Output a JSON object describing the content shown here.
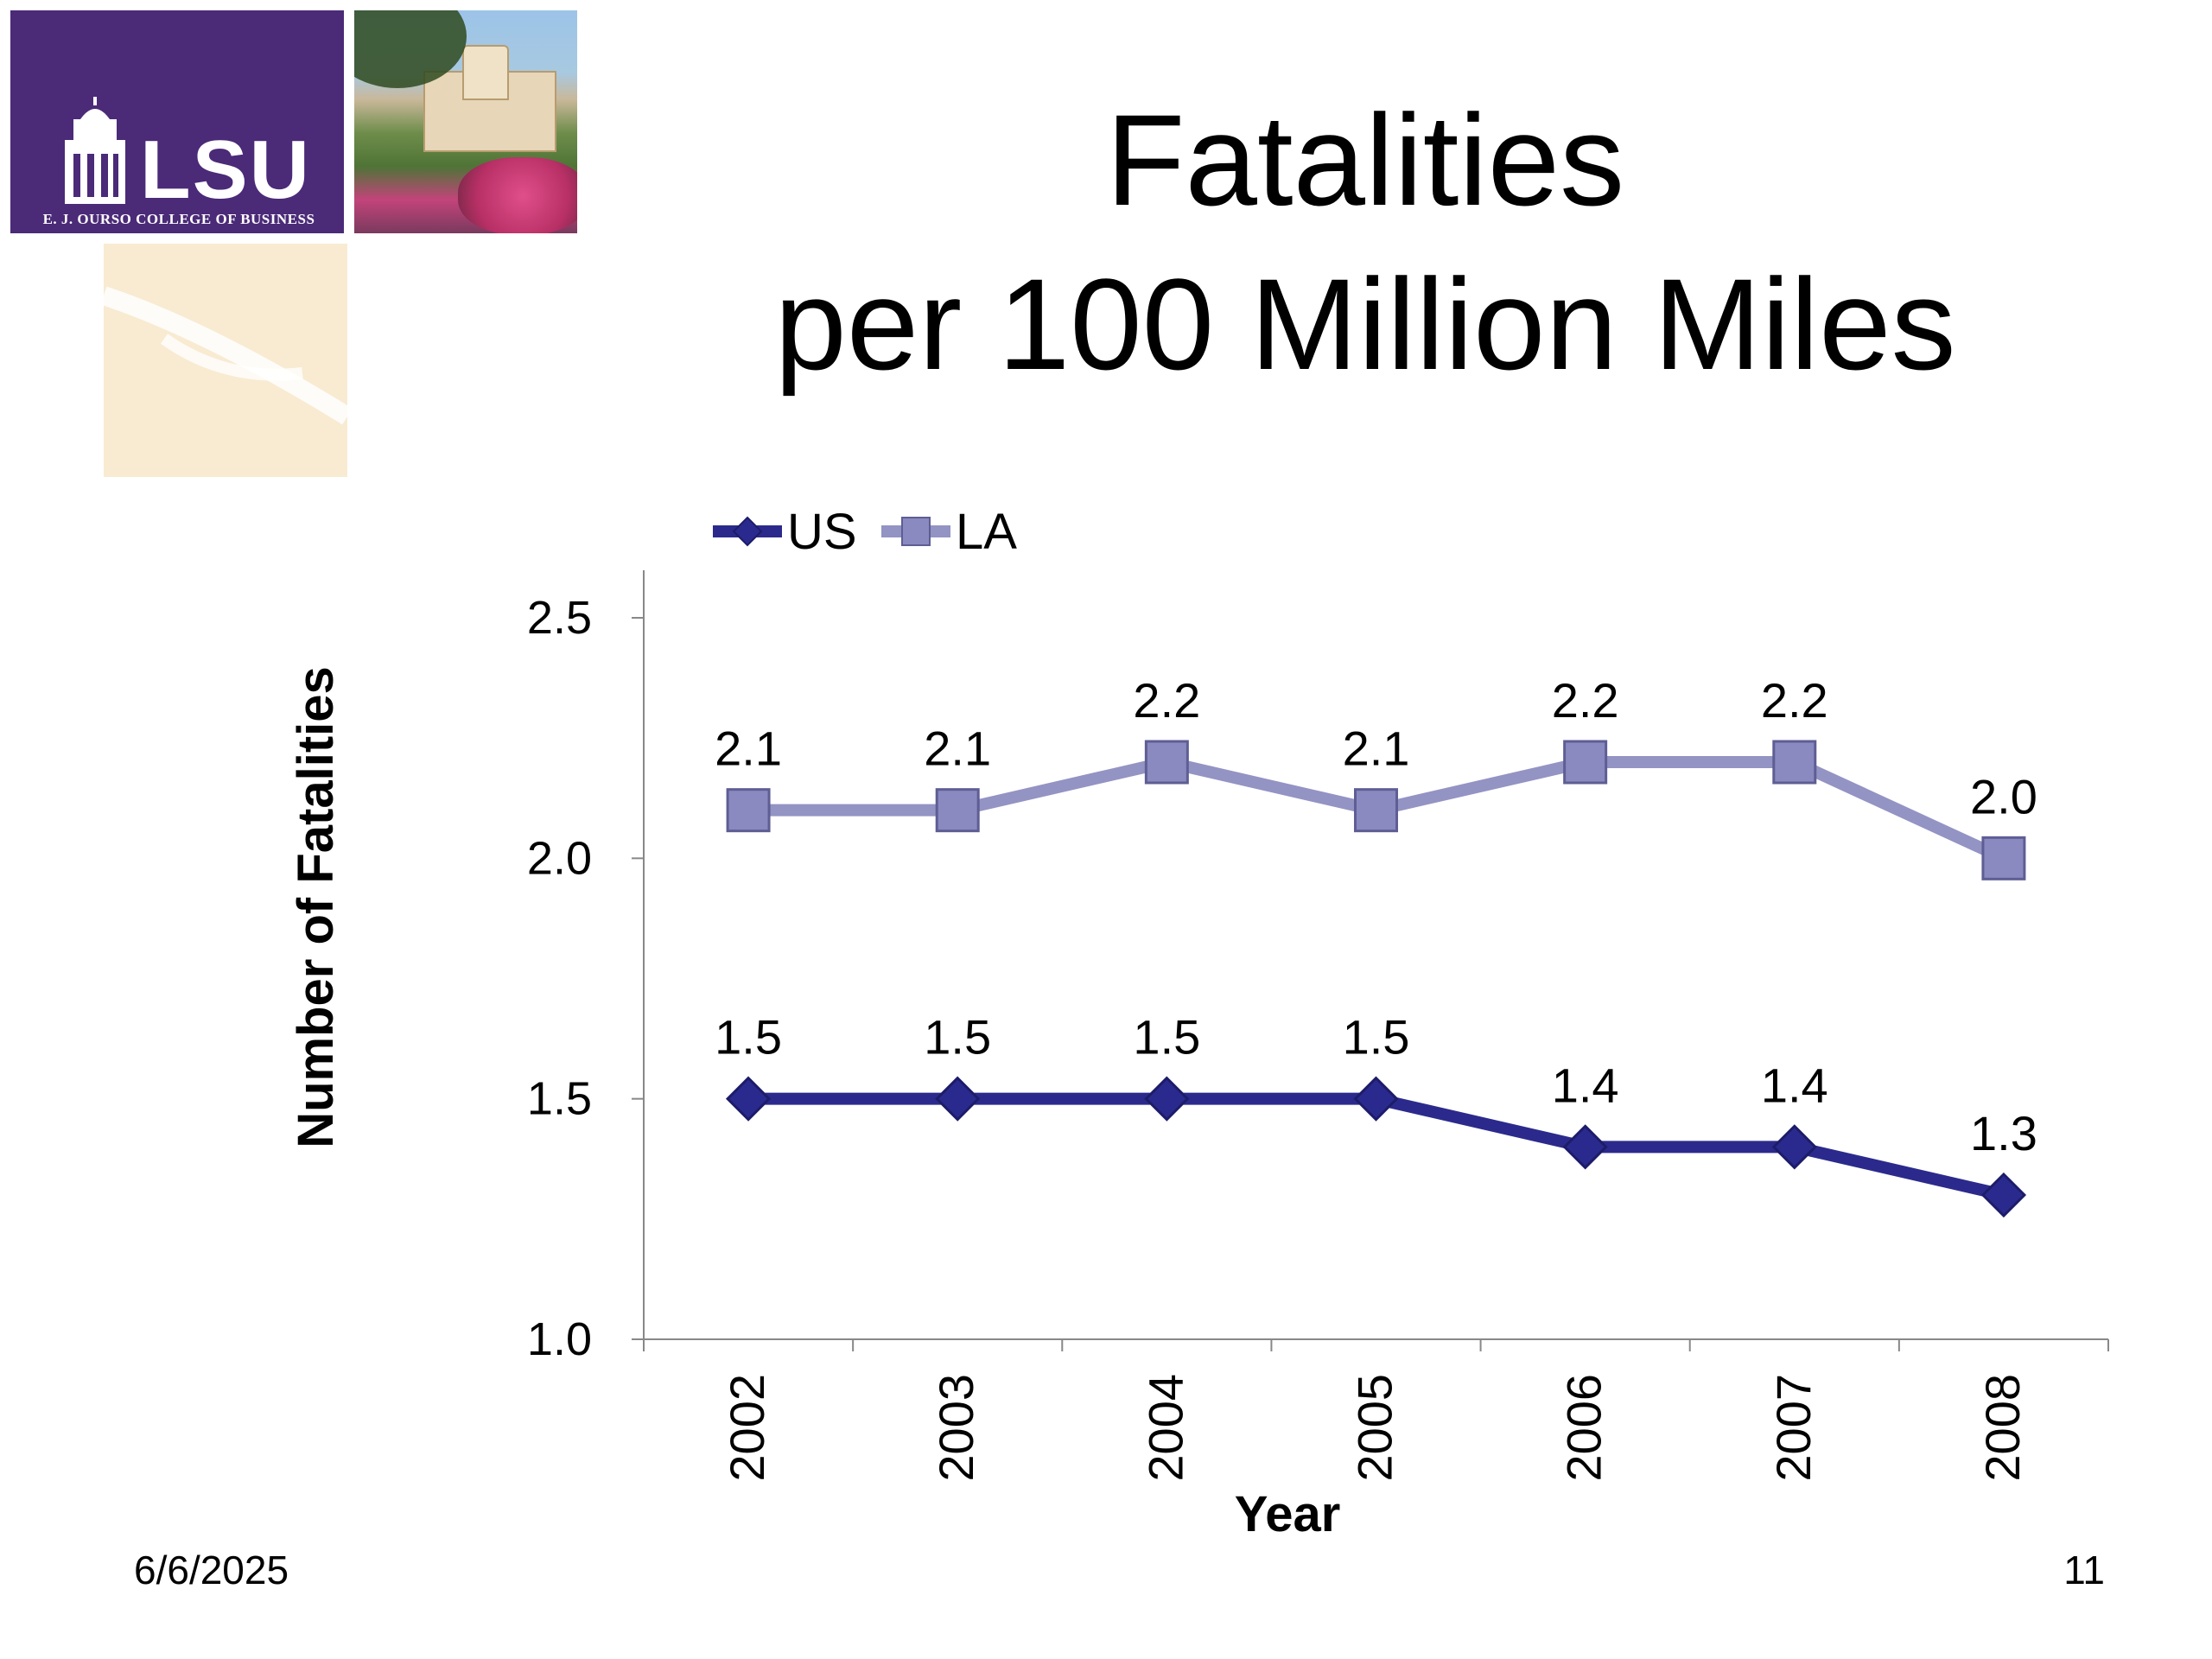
{
  "slide": {
    "title_line1": "Fatalities",
    "title_line2": "per 100 Million Miles",
    "date": "6/6/2025",
    "page_number": "11"
  },
  "logo": {
    "wordmark": "LSU",
    "subtitle": "E. J. OURSO COLLEGE OF BUSINESS",
    "brand_color": "#4b2a78"
  },
  "chart_data": {
    "type": "line",
    "title": "",
    "xlabel": "Year",
    "ylabel": "Number of Fatalities",
    "categories": [
      "2002",
      "2003",
      "2004",
      "2005",
      "2006",
      "2007",
      "2008"
    ],
    "ylim": [
      1.0,
      2.5
    ],
    "yticks": [
      "1.0",
      "1.5",
      "2.0",
      "2.5"
    ],
    "grid": false,
    "legend_position": "top-left",
    "series": [
      {
        "name": "US",
        "values": [
          1.5,
          1.5,
          1.5,
          1.5,
          1.4,
          1.4,
          1.3
        ],
        "labels": [
          "1.5",
          "1.5",
          "1.5",
          "1.5",
          "1.4",
          "1.4",
          "1.3"
        ],
        "color": "#2b2a8c",
        "marker": "diamond"
      },
      {
        "name": "LA",
        "values": [
          2.1,
          2.1,
          2.2,
          2.1,
          2.2,
          2.2,
          2.0
        ],
        "labels": [
          "2.1",
          "2.1",
          "2.2",
          "2.1",
          "2.2",
          "2.2",
          "2.0"
        ],
        "color": "#9393c4",
        "marker": "square"
      }
    ]
  }
}
